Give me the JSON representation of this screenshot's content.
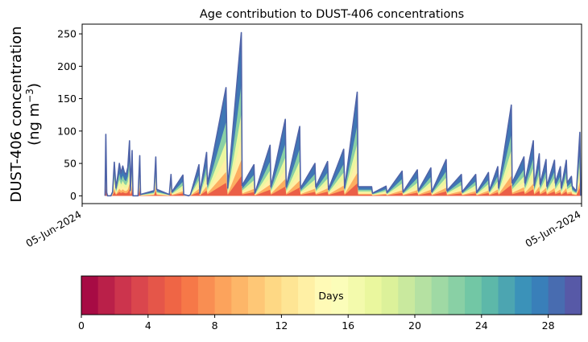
{
  "chart_data": {
    "type": "area",
    "title": "Age contribution to DUST-406 concentrations",
    "ylabel_line1": "DUST-406 concentration",
    "ylabel_line2": "(ng m",
    "ylabel_sup": "−3",
    "ylabel_close": ")",
    "yticks": [
      0,
      50,
      100,
      150,
      200,
      250
    ],
    "ylim": [
      -12,
      265
    ],
    "x_tick_labels": [
      "05-Jun-2024",
      "05-Jun-2024"
    ],
    "x_range_index": [
      0,
      590
    ],
    "grid": false,
    "series": [
      {
        "values": [
          [
            27,
            0
          ],
          [
            28,
            95
          ],
          [
            29,
            5
          ],
          [
            30,
            0
          ],
          [
            34,
            0
          ],
          [
            36,
            6
          ],
          [
            38,
            52
          ],
          [
            40,
            12
          ],
          [
            42,
            30
          ],
          [
            44,
            50
          ],
          [
            46,
            35
          ],
          [
            48,
            46
          ],
          [
            50,
            36
          ],
          [
            52,
            33
          ],
          [
            54,
            44
          ],
          [
            56,
            85
          ],
          [
            57,
            8
          ],
          [
            59,
            70
          ],
          [
            60,
            0
          ],
          [
            66,
            0
          ],
          [
            68,
            62
          ],
          [
            69,
            2
          ],
          [
            85,
            8
          ],
          [
            87,
            60
          ],
          [
            88,
            10
          ],
          [
            103,
            2
          ],
          [
            105,
            33
          ],
          [
            106,
            6
          ],
          [
            119,
            32
          ],
          [
            120,
            2
          ],
          [
            126,
            0
          ],
          [
            128,
            2
          ],
          [
            138,
            48
          ],
          [
            139,
            4
          ],
          [
            147,
            67
          ],
          [
            148,
            18
          ],
          [
            170,
            167
          ],
          [
            172,
            12
          ],
          [
            188,
            252
          ],
          [
            189,
            16
          ],
          [
            203,
            48
          ],
          [
            204,
            4
          ],
          [
            222,
            78
          ],
          [
            223,
            14
          ],
          [
            240,
            118
          ],
          [
            241,
            14
          ],
          [
            257,
            107
          ],
          [
            258,
            12
          ],
          [
            275,
            50
          ],
          [
            276,
            14
          ],
          [
            290,
            53
          ],
          [
            291,
            10
          ],
          [
            309,
            72
          ],
          [
            310,
            12
          ],
          [
            325,
            160
          ],
          [
            326,
            14
          ],
          [
            342,
            14
          ],
          [
            343,
            4
          ],
          [
            359,
            15
          ],
          [
            360,
            5
          ],
          [
            378,
            38
          ],
          [
            379,
            6
          ],
          [
            396,
            40
          ],
          [
            397,
            8
          ],
          [
            412,
            43
          ],
          [
            413,
            6
          ],
          [
            430,
            56
          ],
          [
            431,
            8
          ],
          [
            448,
            33
          ],
          [
            449,
            6
          ],
          [
            465,
            33
          ],
          [
            466,
            5
          ],
          [
            480,
            36
          ],
          [
            481,
            8
          ],
          [
            491,
            45
          ],
          [
            492,
            12
          ],
          [
            507,
            140
          ],
          [
            508,
            20
          ],
          [
            522,
            60
          ],
          [
            523,
            20
          ],
          [
            533,
            85
          ],
          [
            534,
            16
          ],
          [
            540,
            65
          ],
          [
            541,
            18
          ],
          [
            548,
            56
          ],
          [
            549,
            15
          ],
          [
            558,
            55
          ],
          [
            559,
            20
          ],
          [
            565,
            45
          ],
          [
            566,
            12
          ],
          [
            572,
            55
          ],
          [
            573,
            20
          ],
          [
            578,
            30
          ],
          [
            579,
            15
          ],
          [
            582,
            10
          ],
          [
            584,
            8
          ],
          [
            588,
            98
          ],
          [
            589,
            0
          ]
        ]
      }
    ],
    "colorbar": {
      "label": "Days",
      "ticks": [
        0,
        4,
        8,
        12,
        16,
        20,
        24,
        28
      ],
      "range": [
        0,
        30
      ],
      "bins": 30,
      "colors": [
        "#9e0142",
        "#d53e4f",
        "#f46d43",
        "#fdae61",
        "#fee08b",
        "#ffffbf",
        "#e6f598",
        "#abdda4",
        "#66c2a5",
        "#3288bd",
        "#5e4fa2"
      ]
    },
    "line_color": "#4f63a8"
  }
}
